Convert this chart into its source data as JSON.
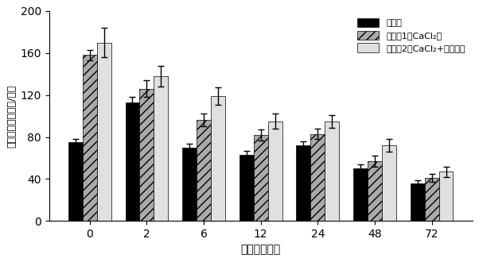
{
  "time_labels": [
    "0",
    "2",
    "6",
    "12",
    "24",
    "48",
    "72"
  ],
  "group1_values": [
    75,
    113,
    70,
    63,
    72,
    50,
    36
  ],
  "group2_values": [
    158,
    126,
    96,
    82,
    83,
    57,
    41
  ],
  "group3_values": [
    170,
    138,
    119,
    95,
    95,
    72,
    47
  ],
  "group1_errors": [
    3,
    5,
    4,
    4,
    4,
    4,
    3
  ],
  "group2_errors": [
    5,
    8,
    6,
    5,
    5,
    5,
    4
  ],
  "group3_errors": [
    14,
    10,
    8,
    7,
    6,
    6,
    5
  ],
  "ylabel": "褾黑素含量（皮克/克）",
  "xlabel": "时间（小时）",
  "legend_label1": "对照组",
  "legend_label2": "处理组1（CaCl₂）",
  "legend_label3": "处理组2（CaCl₂+脘氨酸）",
  "ylim": [
    0,
    200
  ],
  "yticks": [
    0,
    40,
    80,
    120,
    160,
    200
  ],
  "bar_width": 0.25,
  "group1_color": "#000000",
  "group2_color": "#aaaaaa",
  "group3_color": "#e0e0e0",
  "background_color": "#ffffff",
  "hatch2": "///",
  "hatch3": ""
}
